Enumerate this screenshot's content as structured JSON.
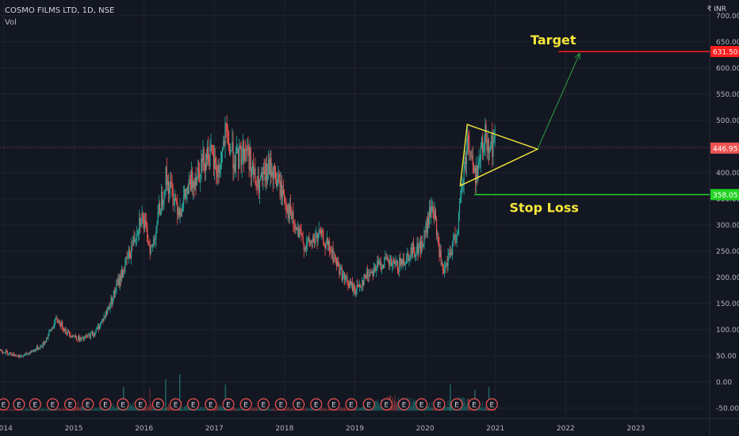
{
  "header": {
    "symbol": "COSMO FILMS LTD, 1D, NSE",
    "volume_label": "Vol",
    "currency": "₹ INR"
  },
  "colors": {
    "background": "#131722",
    "grid": "#1f2431",
    "up": "#26a69a",
    "down": "#ef5350",
    "annotation": "#f6e73a",
    "target": "#ff1e1e",
    "stop": "#22d322",
    "arrow": "#2ea043",
    "price_tag": "#f05350"
  },
  "chart_data": {
    "type": "candlestick",
    "x_ticks": [
      "2014",
      "2015",
      "2016",
      "2017",
      "2018",
      "2019",
      "2020",
      "2021",
      "2022",
      "2023"
    ],
    "y_ticks": [
      -50,
      0,
      50,
      100,
      150,
      200,
      250,
      300,
      350,
      400,
      450,
      500,
      550,
      600,
      650,
      700
    ],
    "y_tick_labels": [
      "-50.00",
      "0.00",
      "50.00",
      "100.00",
      "150.00",
      "200.00",
      "250.00",
      "300.00",
      "350.00",
      "400.00",
      "450.00",
      "500.00",
      "550.00",
      "600.00",
      "650.00",
      "700.00"
    ],
    "ylim": [
      -70,
      730
    ],
    "xlim": [
      2013.95,
      2024.05
    ],
    "price_path": [
      [
        2013.95,
        60
      ],
      [
        2014.25,
        48
      ],
      [
        2014.55,
        70
      ],
      [
        2014.75,
        120
      ],
      [
        2014.9,
        95
      ],
      [
        2015.1,
        80
      ],
      [
        2015.3,
        95
      ],
      [
        2015.45,
        130
      ],
      [
        2015.6,
        180
      ],
      [
        2015.8,
        250
      ],
      [
        2015.95,
        320
      ],
      [
        2016.1,
        250
      ],
      [
        2016.3,
        390
      ],
      [
        2016.5,
        330
      ],
      [
        2016.7,
        390
      ],
      [
        2016.9,
        440
      ],
      [
        2017.05,
        400
      ],
      [
        2017.15,
        470
      ],
      [
        2017.3,
        420
      ],
      [
        2017.45,
        450
      ],
      [
        2017.6,
        370
      ],
      [
        2017.8,
        410
      ],
      [
        2018.0,
        350
      ],
      [
        2018.15,
        290
      ],
      [
        2018.3,
        260
      ],
      [
        2018.5,
        280
      ],
      [
        2018.65,
        250
      ],
      [
        2018.85,
        195
      ],
      [
        2019.0,
        175
      ],
      [
        2019.2,
        210
      ],
      [
        2019.4,
        230
      ],
      [
        2019.6,
        220
      ],
      [
        2019.8,
        250
      ],
      [
        2019.95,
        260
      ],
      [
        2020.1,
        340
      ],
      [
        2020.25,
        200
      ],
      [
        2020.45,
        290
      ],
      [
        2020.6,
        470
      ],
      [
        2020.7,
        390
      ],
      [
        2020.85,
        470
      ],
      [
        2021.0,
        446
      ]
    ],
    "volume_profile": [
      2,
      2,
      3,
      3,
      4,
      4,
      5,
      4,
      6,
      8,
      10,
      7,
      9,
      8,
      7,
      6,
      5,
      7,
      6,
      5,
      4,
      4,
      3,
      4,
      3,
      4,
      4,
      5,
      5,
      6,
      12,
      18,
      15,
      14,
      10,
      9,
      12,
      16,
      11,
      8
    ],
    "volume_spikes": [
      [
        2015.7,
        45
      ],
      [
        2016.3,
        60
      ],
      [
        2016.5,
        70
      ],
      [
        2017.15,
        50
      ],
      [
        2020.35,
        50
      ],
      [
        2020.9,
        45
      ],
      [
        2020.7,
        40
      ]
    ],
    "last_price": 446.95,
    "last_price_label": "446.95",
    "target_price": 631.5,
    "target_label": "631.50",
    "stop_price": 358.05,
    "stop_label": "358.05",
    "triangle": [
      [
        2020.6,
        492
      ],
      [
        2021.6,
        445
      ],
      [
        2020.5,
        375
      ]
    ],
    "target_arrow": [
      [
        2021.6,
        445
      ],
      [
        2022.2,
        628
      ]
    ],
    "target_line_start": 2021.9,
    "stop_line_start": 2020.7,
    "earnings_marks": [
      2014.0,
      2014.22,
      2014.45,
      2014.7,
      2014.95,
      2015.2,
      2015.45,
      2015.7,
      2015.95,
      2016.2,
      2016.45,
      2016.7,
      2016.95,
      2017.2,
      2017.45,
      2017.7,
      2017.95,
      2018.2,
      2018.45,
      2018.7,
      2018.95,
      2019.2,
      2019.45,
      2019.7,
      2019.95,
      2020.2,
      2020.45,
      2020.7,
      2020.95
    ],
    "earnings_label": "E",
    "annotations": {
      "target": "Target",
      "stop_loss": "Stop Loss"
    }
  }
}
